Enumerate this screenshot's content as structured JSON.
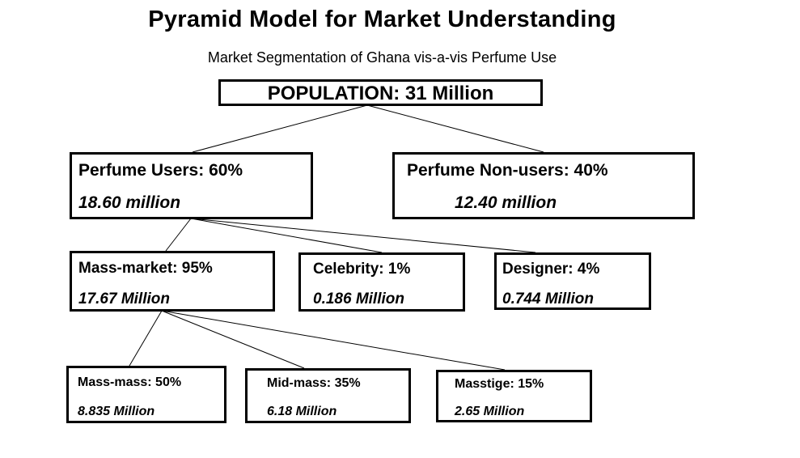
{
  "title": "Pyramid Model for Market Understanding",
  "subtitle": "Market Segmentation of Ghana vis-a-vis Perfume Use",
  "nodes": {
    "population": {
      "line1": "POPULATION: 31 Million"
    },
    "perfume_users": {
      "line1": "Perfume Users: 60%",
      "line2": "18.60 million"
    },
    "perfume_non_users": {
      "line1": "Perfume Non-users: 40%",
      "line2": "12.40 million"
    },
    "mass_market": {
      "line1": "Mass-market: 95%",
      "line2": "17.67 Million"
    },
    "celebrity": {
      "line1": "Celebrity: 1%",
      "line2": "0.186 Million"
    },
    "designer": {
      "line1": "Designer: 4%",
      "line2": "0.744 Million"
    },
    "mass_mass": {
      "line1": "Mass-mass: 50%",
      "line2": "8.835 Million"
    },
    "mid_mass": {
      "line1": "Mid-mass: 35%",
      "line2": "6.18 Million"
    },
    "masstige": {
      "line1": "Masstige: 15%",
      "line2": "2.65 Million"
    }
  },
  "edges": [
    [
      "population",
      "perfume_users"
    ],
    [
      "population",
      "perfume_non_users"
    ],
    [
      "perfume_users",
      "mass_market"
    ],
    [
      "perfume_users",
      "celebrity"
    ],
    [
      "perfume_users",
      "designer"
    ],
    [
      "mass_market",
      "mass_mass"
    ],
    [
      "mass_market",
      "mid_mass"
    ],
    [
      "mass_market",
      "masstige"
    ]
  ]
}
